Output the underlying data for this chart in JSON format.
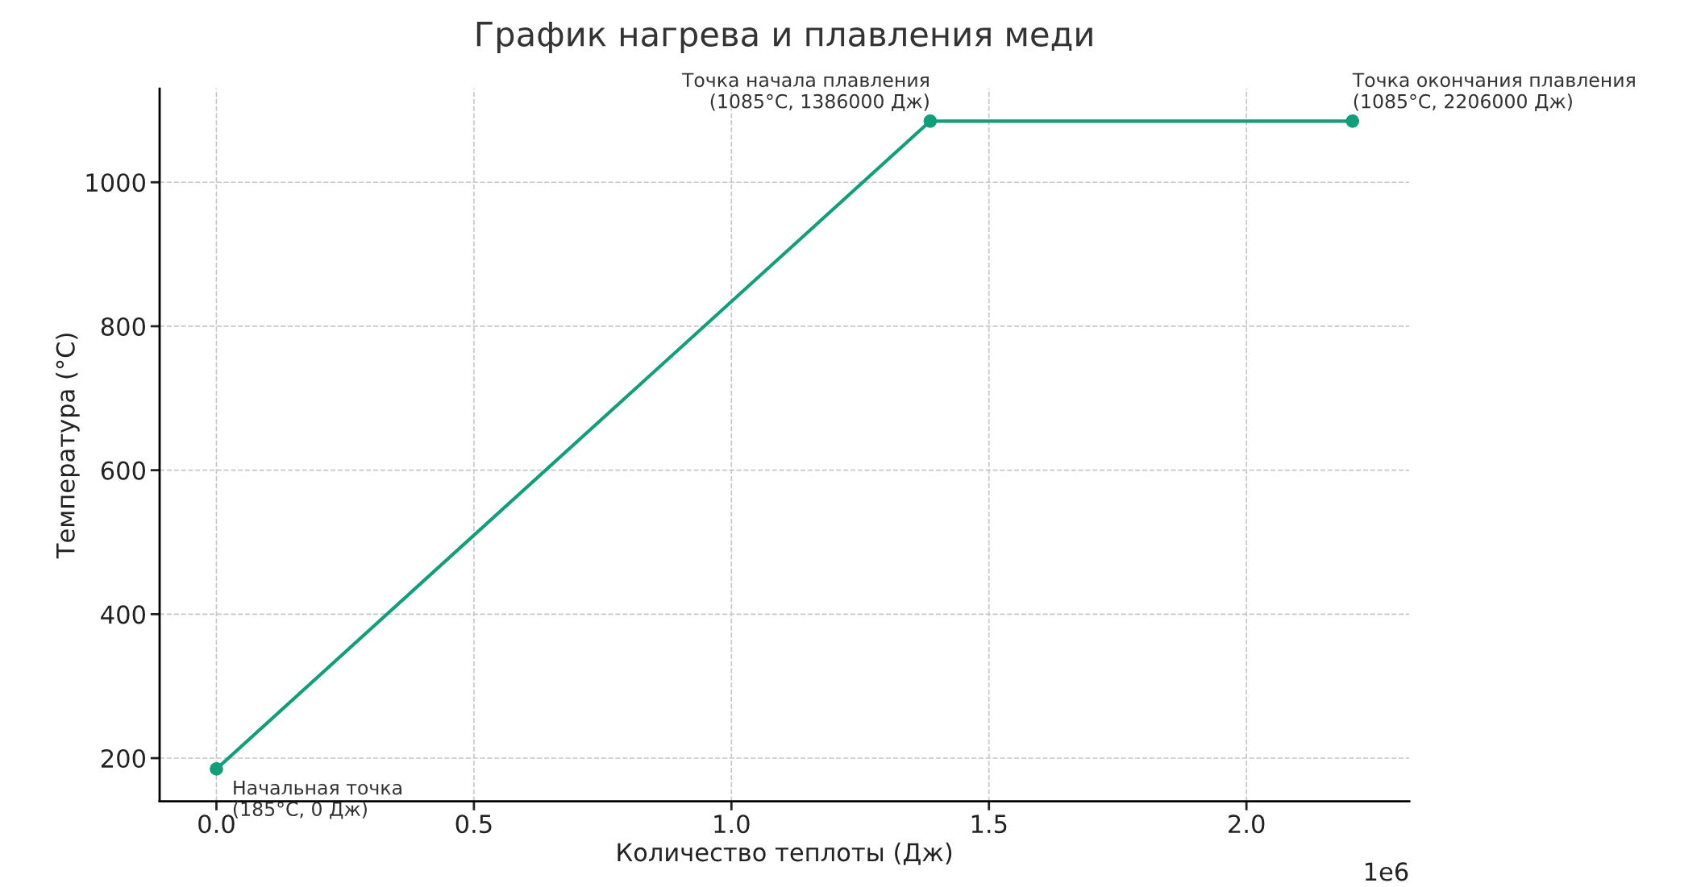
{
  "chart_data": {
    "type": "line",
    "title": "График нагрева и плавления меди",
    "xlabel": "Количество теплоты (Дж)",
    "ylabel": "Температура (°C)",
    "x": [
      0,
      1.386,
      2.206
    ],
    "series": [
      {
        "color": "#109e7b",
        "values": [
          185,
          1085,
          1085
        ]
      }
    ],
    "marker": "circle",
    "line_style": "solid",
    "grid": true,
    "xlim": [
      -0.1103,
      2.3163
    ],
    "xticks": [
      {
        "value": 0,
        "label": "0.0"
      },
      0.5,
      {
        "value": 1,
        "label": "1.0"
      },
      1.5,
      {
        "value": 2,
        "label": "2.0"
      }
    ],
    "ylim": [
      140,
      1130
    ],
    "yticks": [
      200,
      400,
      600,
      800,
      1000
    ],
    "annotations": [
      {
        "text": "Начальная точка\n(185°C, 0 Дж)",
        "x": 0,
        "y": 185
      },
      {
        "text": "Точка начала плавления\n(1085°C, 1386000 Дж)",
        "x": 1.386,
        "y": 1085
      },
      {
        "text": "Точка окончания плавления\n(1085°C, 2206000 Дж)",
        "x": 2.206,
        "y": 1085
      },
      "1e6"
    ]
  }
}
